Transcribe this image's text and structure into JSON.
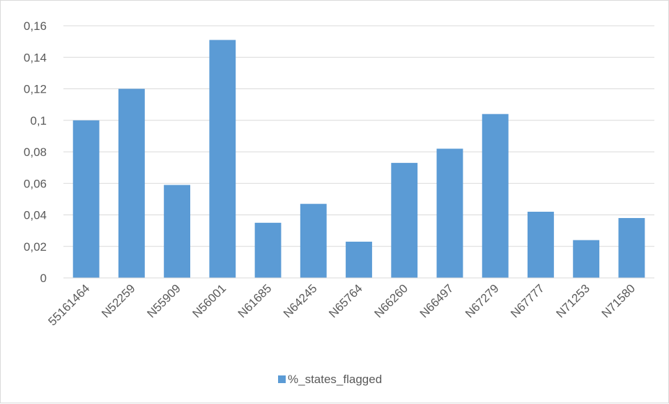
{
  "chart_data": {
    "type": "bar",
    "categories": [
      "55161464",
      "N52259",
      "N55909",
      "N56001",
      "N61685",
      "N64245",
      "N65764",
      "N66260",
      "N66497",
      "N67279",
      "N67777",
      "N71253",
      "N71580"
    ],
    "series": [
      {
        "name": "%_states_flagged",
        "color": "#5b9bd5",
        "values": [
          0.1,
          0.12,
          0.059,
          0.151,
          0.035,
          0.047,
          0.023,
          0.073,
          0.082,
          0.104,
          0.042,
          0.024,
          0.038
        ]
      }
    ],
    "y_ticks": [
      "0",
      "0,02",
      "0,04",
      "0,06",
      "0,08",
      "0,1",
      "0,12",
      "0,14",
      "0,16"
    ],
    "ylim": [
      0,
      0.16
    ],
    "grid": true,
    "legend_position": "bottom",
    "title": "",
    "xlabel": "",
    "ylabel": ""
  }
}
